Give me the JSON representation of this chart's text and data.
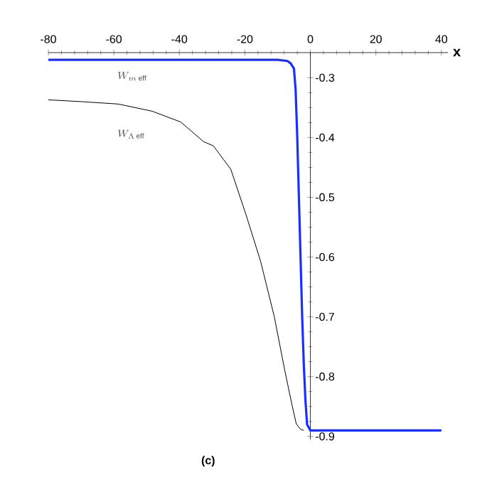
{
  "chart_data": {
    "type": "line",
    "xlabel": "x",
    "xlim": [
      -80,
      42
    ],
    "ylim": [
      -0.905,
      -0.258
    ],
    "xticks": [
      -80,
      -60,
      -40,
      -20,
      0,
      20,
      40
    ],
    "yticks": [
      -0.3,
      -0.4,
      -0.5,
      -0.6,
      -0.7,
      -0.8,
      -0.9
    ],
    "annotations": [
      "(c)"
    ],
    "series": [
      {
        "name": "W_{m\\,\\mathrm{eff}}",
        "color": "#1a2eff",
        "x": [
          -80,
          -10,
          -7,
          -6,
          -5,
          -4.5,
          -4,
          -3.5,
          -3,
          -2.5,
          -2,
          -1.5,
          -1,
          0,
          40
        ],
        "values": [
          -0.27,
          -0.27,
          -0.272,
          -0.276,
          -0.285,
          -0.32,
          -0.4,
          -0.5,
          -0.6,
          -0.7,
          -0.78,
          -0.84,
          -0.88,
          -0.89,
          -0.89
        ]
      },
      {
        "name": "W_{\\Lambda\\,\\mathrm{eff}}",
        "color": "#000000",
        "x": [
          -80,
          -70,
          -58.7,
          -48.3,
          -39.6,
          -32.6,
          -29.6,
          -26.5,
          -24.3,
          -19.6,
          -15.2,
          -11,
          -7.8,
          -5.5,
          -4.3,
          -3,
          -2
        ],
        "values": [
          -0.337,
          -0.34,
          -0.344,
          -0.356,
          -0.374,
          -0.407,
          -0.414,
          -0.437,
          -0.453,
          -0.53,
          -0.607,
          -0.7,
          -0.79,
          -0.85,
          -0.879,
          -0.888,
          -0.89
        ]
      }
    ]
  }
}
